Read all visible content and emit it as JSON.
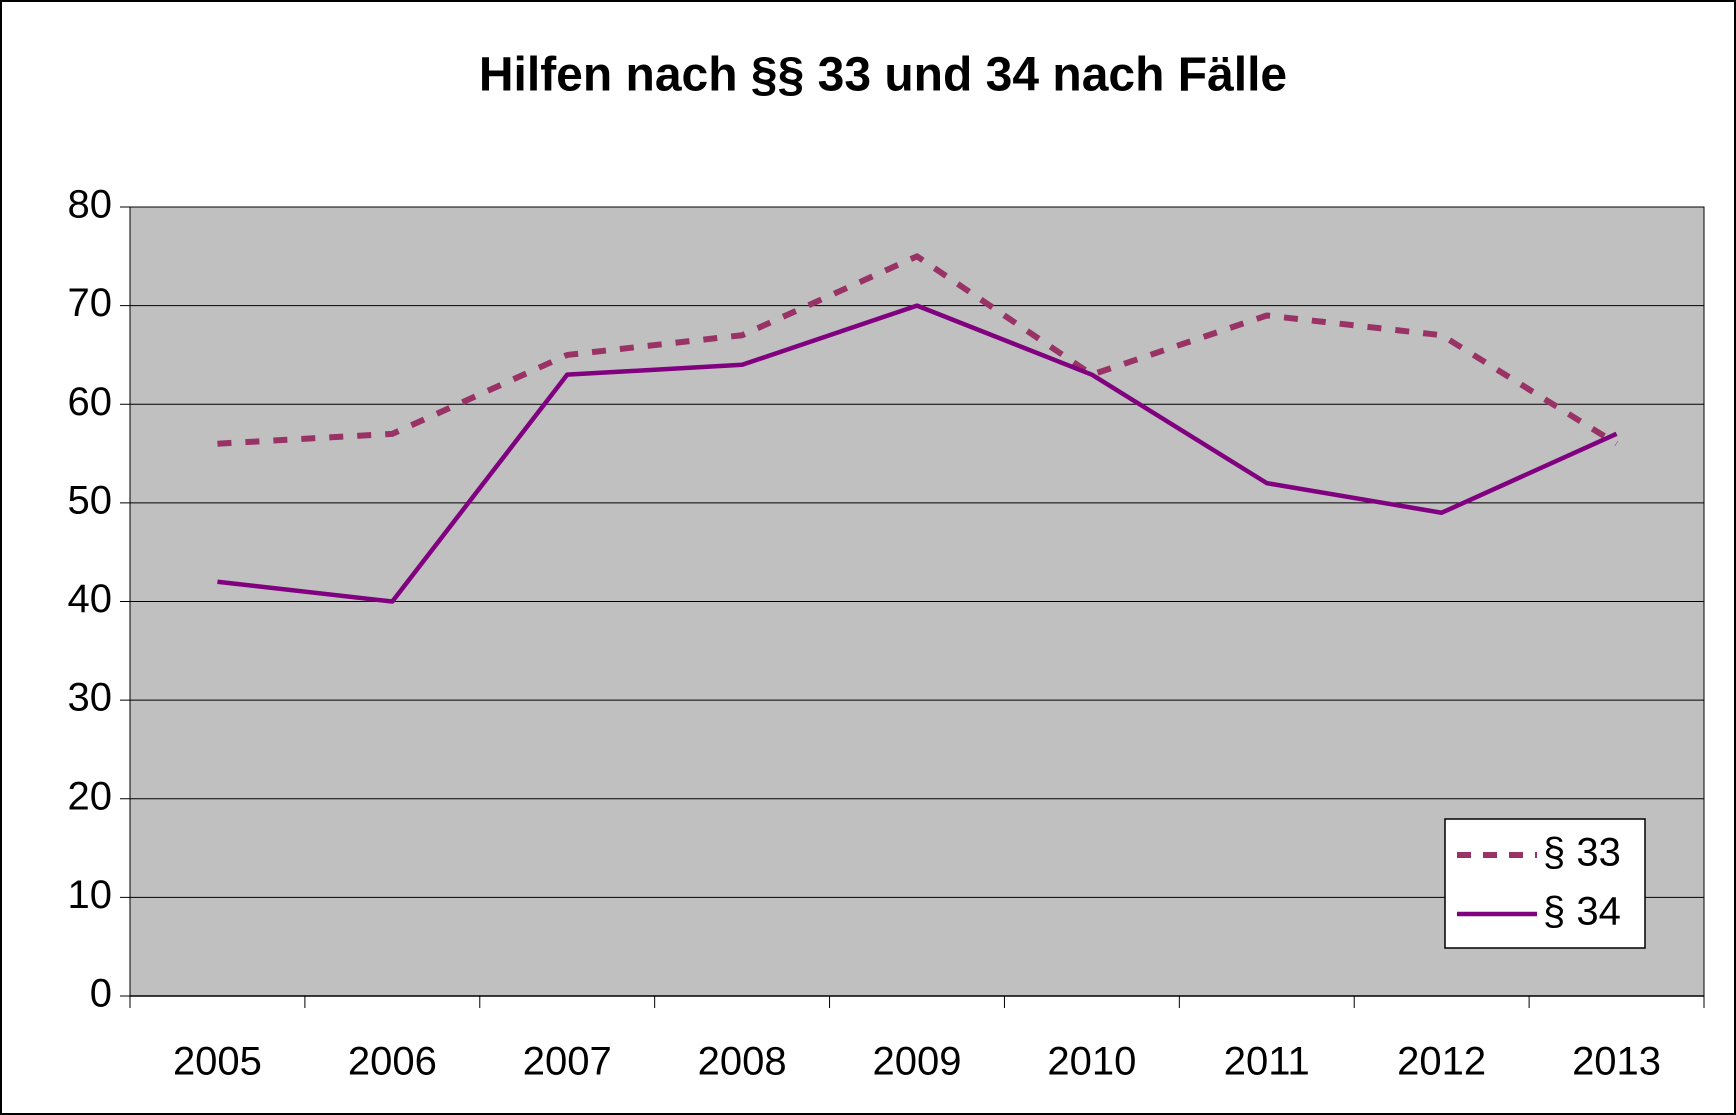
{
  "chart_data": {
    "type": "line",
    "title": "Hilfen nach §§ 33 und 34 nach Fälle",
    "categories": [
      "2005",
      "2006",
      "2007",
      "2008",
      "2009",
      "2010",
      "2011",
      "2012",
      "2013"
    ],
    "series": [
      {
        "name": "§ 33",
        "color": "#993366",
        "dashed": true,
        "values": [
          56,
          57,
          65,
          67,
          75,
          63,
          69,
          67,
          56
        ]
      },
      {
        "name": "§ 34",
        "color": "#800080",
        "dashed": false,
        "values": [
          42,
          40,
          63,
          64,
          70,
          63,
          52,
          49,
          57
        ]
      }
    ],
    "ylim": [
      0,
      80
    ],
    "yticks": [
      0,
      10,
      20,
      30,
      40,
      50,
      60,
      70,
      80
    ],
    "grid": true,
    "legend": "lower right",
    "plot_background": "#c0c0c0"
  }
}
